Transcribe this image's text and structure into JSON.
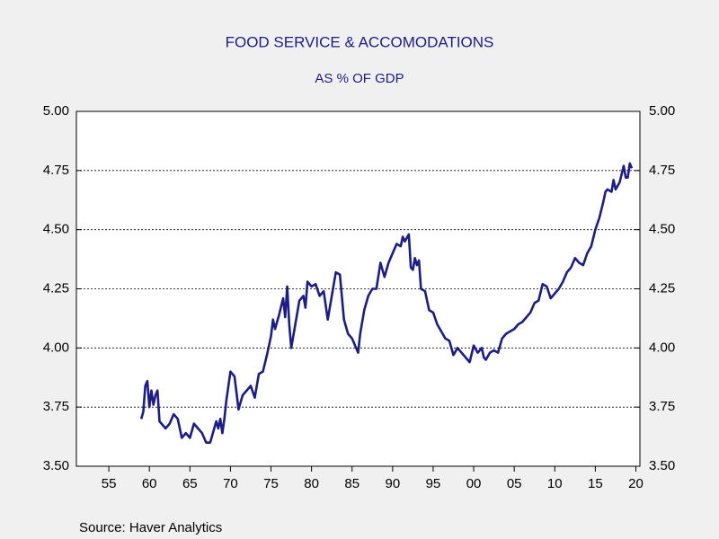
{
  "chart_data": {
    "type": "line",
    "title": "FOOD SERVICE & ACCOMODATIONS",
    "subtitle": "AS % OF GDP",
    "source": "Source:  Haver Analytics",
    "x": [
      1959,
      1959.25,
      1959.5,
      1959.75,
      1960,
      1960.25,
      1960.5,
      1960.75,
      1961,
      1961.25,
      1961.5,
      1962,
      1962.5,
      1963,
      1963.5,
      1964,
      1964.5,
      1965,
      1965.5,
      1966,
      1966.5,
      1967,
      1967.5,
      1968,
      1968.25,
      1968.5,
      1968.75,
      1969,
      1969.25,
      1969.5,
      1970,
      1970.5,
      1971,
      1971.5,
      1972,
      1972.5,
      1973,
      1973.5,
      1974,
      1974.5,
      1975,
      1975.25,
      1975.5,
      1976,
      1976.5,
      1976.75,
      1977,
      1977.25,
      1977.5,
      1978,
      1978.5,
      1979,
      1979.25,
      1979.5,
      1980,
      1980.5,
      1981,
      1981.5,
      1982,
      1982.5,
      1983,
      1983.5,
      1984,
      1984.5,
      1985,
      1985.5,
      1985.75,
      1986,
      1986.5,
      1987,
      1987.5,
      1988,
      1988.5,
      1989,
      1989.5,
      1990,
      1990.5,
      1991,
      1991.25,
      1991.5,
      1992,
      1992.25,
      1992.5,
      1992.75,
      1993,
      1993.25,
      1993.5,
      1994,
      1994.5,
      1995,
      1995.5,
      1996,
      1996.5,
      1997,
      1997.5,
      1998,
      1998.5,
      1999,
      1999.5,
      2000,
      2000.5,
      2001,
      2001.25,
      2001.5,
      2002,
      2002.5,
      2003,
      2003.5,
      2004,
      2004.5,
      2005,
      2005.5,
      2006,
      2006.5,
      2007,
      2007.5,
      2008,
      2008.5,
      2009,
      2009.5,
      2010,
      2010.5,
      2011,
      2011.5,
      2012,
      2012.5,
      2013,
      2013.5,
      2014,
      2014.5,
      2015,
      2015.5,
      2016,
      2016.25,
      2016.5,
      2017,
      2017.25,
      2017.5,
      2018,
      2018.5,
      2018.75,
      2019,
      2019.25,
      2019.5
    ],
    "series": [
      {
        "name": "Food Service & Accomodations",
        "color": "#1c1c8a",
        "values": [
          3.7,
          3.73,
          3.84,
          3.86,
          3.75,
          3.82,
          3.76,
          3.8,
          3.82,
          3.69,
          3.68,
          3.66,
          3.68,
          3.72,
          3.7,
          3.62,
          3.64,
          3.62,
          3.68,
          3.66,
          3.64,
          3.6,
          3.6,
          3.66,
          3.69,
          3.66,
          3.7,
          3.64,
          3.7,
          3.78,
          3.9,
          3.88,
          3.74,
          3.8,
          3.82,
          3.84,
          3.79,
          3.89,
          3.9,
          3.97,
          4.05,
          4.12,
          4.08,
          4.14,
          4.21,
          4.13,
          4.26,
          4.1,
          4.0,
          4.1,
          4.2,
          4.22,
          4.17,
          4.28,
          4.26,
          4.27,
          4.22,
          4.24,
          4.12,
          4.22,
          4.32,
          4.31,
          4.12,
          4.06,
          4.04,
          4.0,
          3.98,
          4.06,
          4.16,
          4.22,
          4.25,
          4.25,
          4.36,
          4.3,
          4.36,
          4.4,
          4.44,
          4.43,
          4.47,
          4.45,
          4.48,
          4.34,
          4.33,
          4.38,
          4.35,
          4.37,
          4.25,
          4.24,
          4.16,
          4.15,
          4.1,
          4.07,
          4.04,
          4.03,
          3.97,
          4.0,
          3.98,
          3.96,
          3.94,
          4.01,
          3.98,
          4.0,
          3.96,
          3.95,
          3.98,
          3.99,
          3.98,
          4.04,
          4.06,
          4.07,
          4.08,
          4.1,
          4.11,
          4.13,
          4.15,
          4.19,
          4.2,
          4.27,
          4.26,
          4.21,
          4.23,
          4.25,
          4.28,
          4.32,
          4.34,
          4.38,
          4.36,
          4.35,
          4.4,
          4.43,
          4.5,
          4.55,
          4.62,
          4.66,
          4.67,
          4.66,
          4.71,
          4.67,
          4.7,
          4.77,
          4.72,
          4.72,
          4.78,
          4.76
        ]
      }
    ],
    "xlim": [
      1951,
      2020.5
    ],
    "xticks": [
      {
        "value": 1955,
        "label": "55"
      },
      {
        "value": 1960,
        "label": "60"
      },
      {
        "value": 1965,
        "label": "65"
      },
      {
        "value": 1970,
        "label": "70"
      },
      {
        "value": 1975,
        "label": "75"
      },
      {
        "value": 1980,
        "label": "80"
      },
      {
        "value": 1985,
        "label": "85"
      },
      {
        "value": 1990,
        "label": "90"
      },
      {
        "value": 1995,
        "label": "95"
      },
      {
        "value": 2000,
        "label": "00"
      },
      {
        "value": 2005,
        "label": "05"
      },
      {
        "value": 2010,
        "label": "10"
      },
      {
        "value": 2015,
        "label": "15"
      },
      {
        "value": 2020,
        "label": "20"
      }
    ],
    "ylim": [
      3.5,
      5.0
    ],
    "yticks": [
      {
        "value": 3.5,
        "label": "3.50"
      },
      {
        "value": 3.75,
        "label": "3.75"
      },
      {
        "value": 4.0,
        "label": "4.00"
      },
      {
        "value": 4.25,
        "label": "4.25"
      },
      {
        "value": 4.5,
        "label": "4.50"
      },
      {
        "value": 4.75,
        "label": "4.75"
      },
      {
        "value": 5.0,
        "label": "5.00"
      }
    ],
    "y2lim": [
      3.5,
      5.0
    ],
    "y2ticks": [
      {
        "value": 3.5,
        "label": "3.50"
      },
      {
        "value": 3.75,
        "label": "3.75"
      },
      {
        "value": 4.0,
        "label": "4.00"
      },
      {
        "value": 4.25,
        "label": "4.25"
      },
      {
        "value": 4.5,
        "label": "4.50"
      },
      {
        "value": 4.75,
        "label": "4.75"
      },
      {
        "value": 5.0,
        "label": "5.00"
      }
    ],
    "grid": true
  }
}
